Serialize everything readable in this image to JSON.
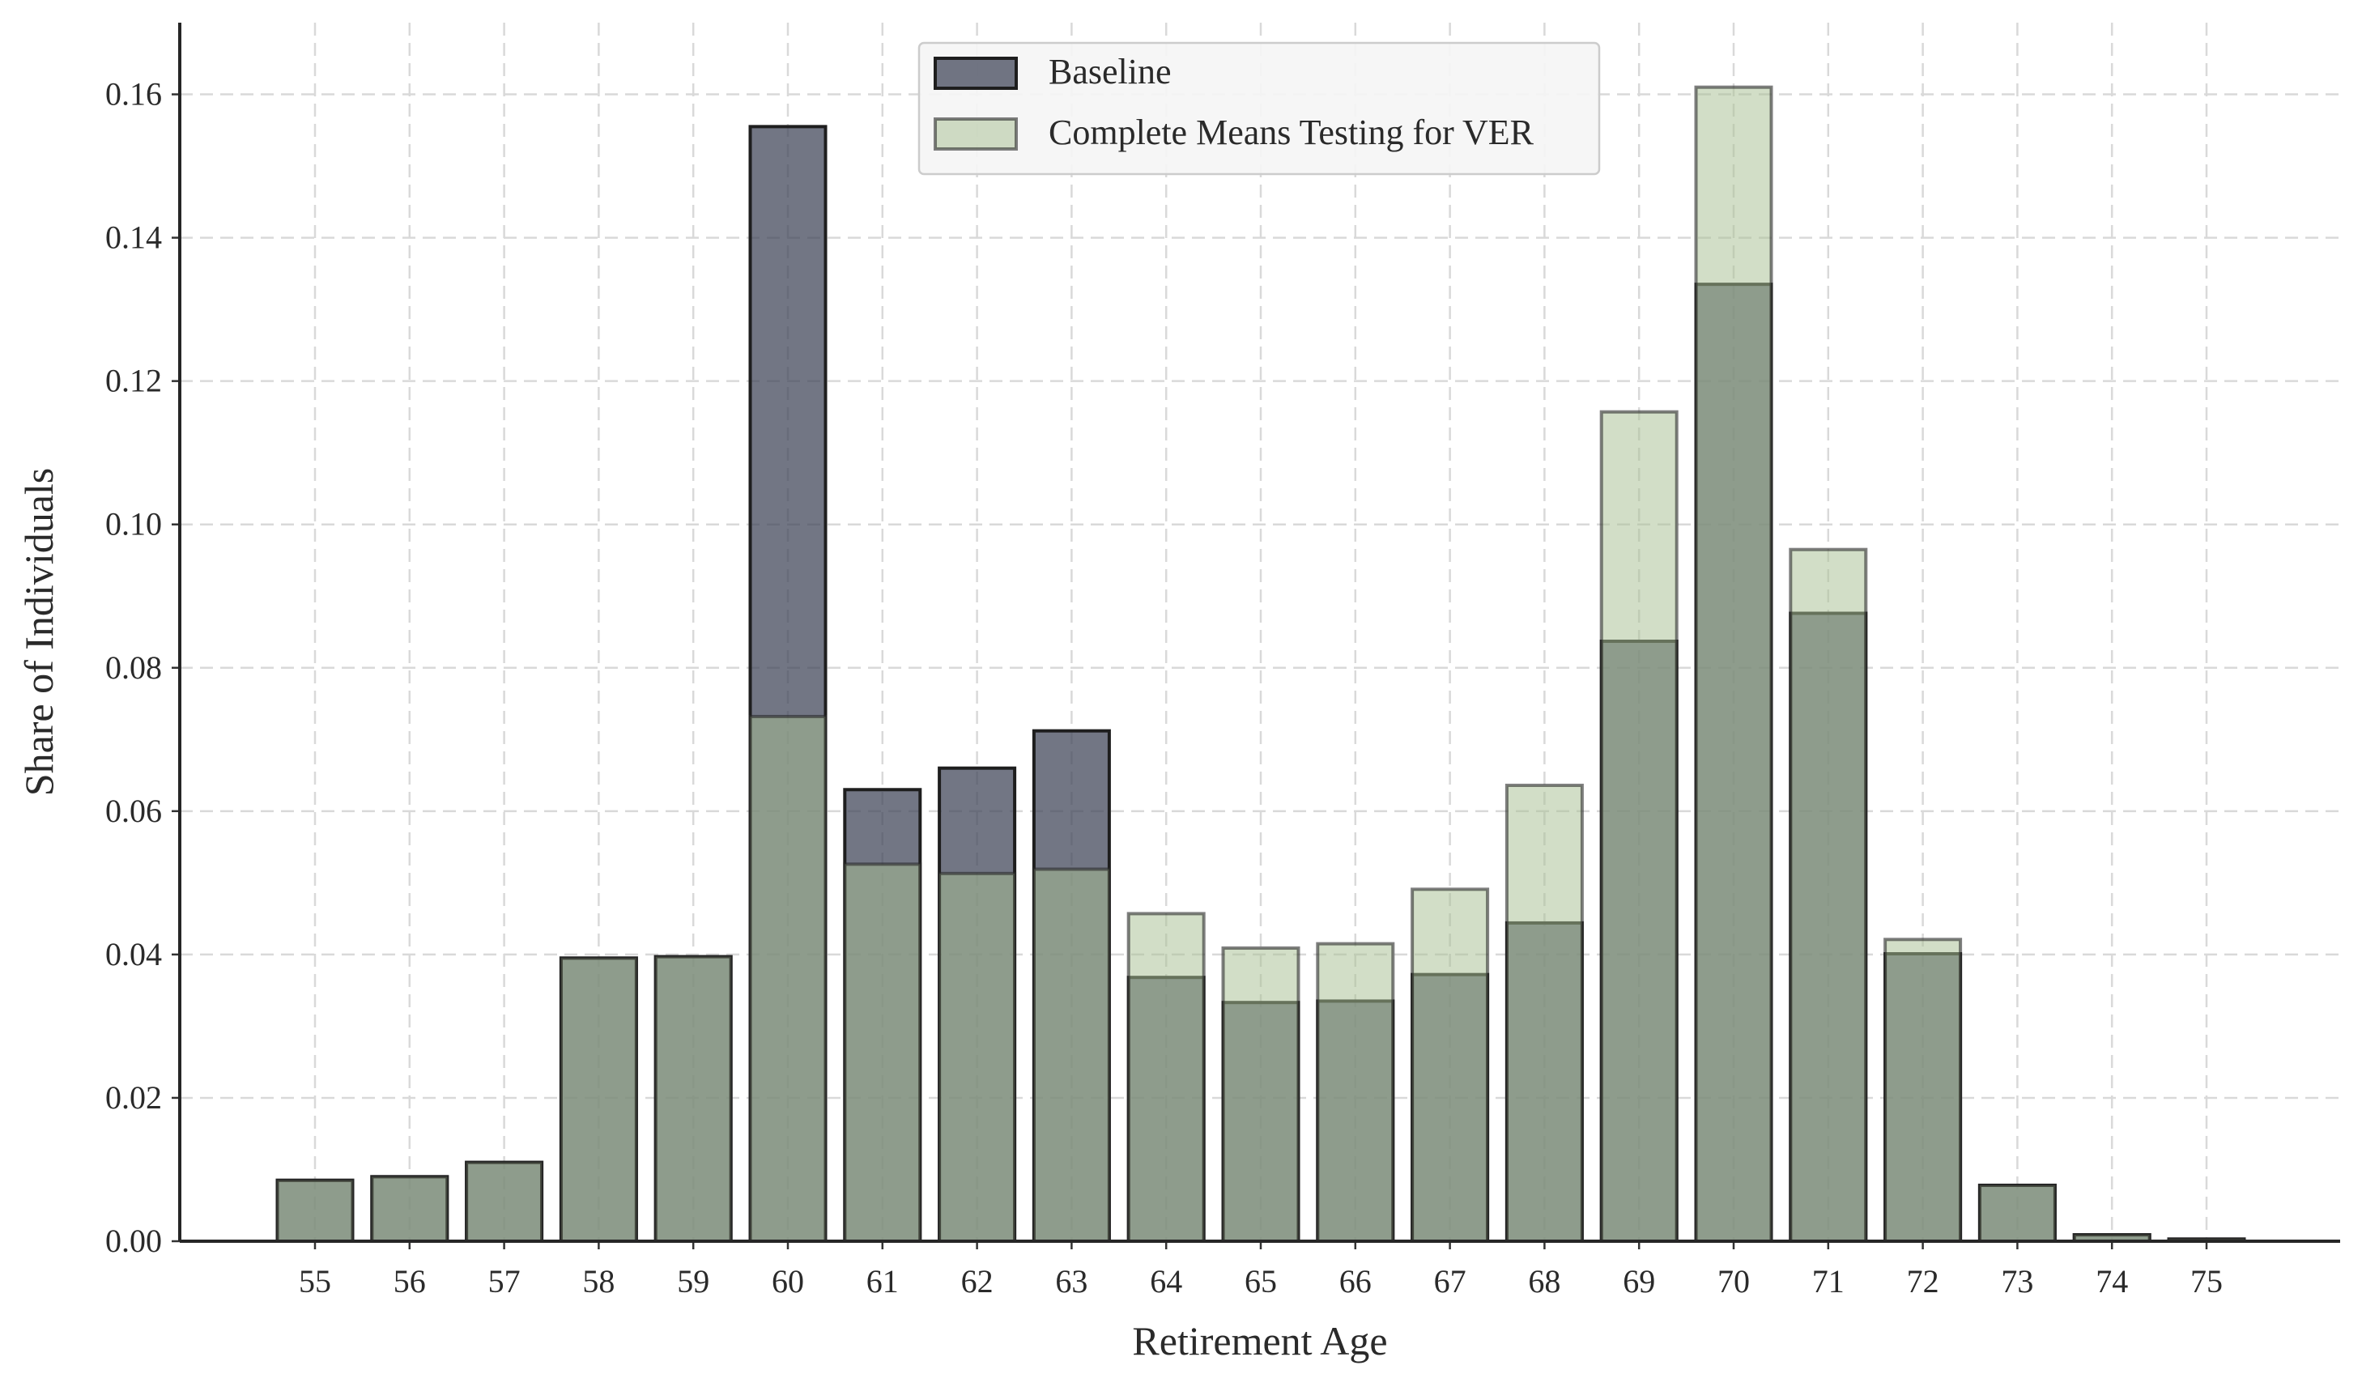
{
  "chart_data": {
    "type": "bar",
    "title": "",
    "xlabel": "Retirement Age",
    "ylabel": "Share of Individuals",
    "categories": [
      "55",
      "56",
      "57",
      "58",
      "59",
      "60",
      "61",
      "62",
      "63",
      "64",
      "65",
      "66",
      "67",
      "68",
      "69",
      "70",
      "71",
      "72",
      "73",
      "74",
      "75"
    ],
    "series": [
      {
        "name": "Baseline",
        "color": "#3b4154",
        "values": [
          0.0085,
          0.009,
          0.011,
          0.0395,
          0.0397,
          0.1555,
          0.063,
          0.066,
          0.0712,
          0.0368,
          0.0333,
          0.0335,
          0.0372,
          0.0444,
          0.0837,
          0.1335,
          0.0876,
          0.0401,
          0.0078,
          0.0009,
          0.0003
        ]
      },
      {
        "name": "Complete Means Testing for VER",
        "color": "#a9bf93",
        "values": [
          0.0085,
          0.009,
          0.011,
          0.0395,
          0.0397,
          0.0732,
          0.0526,
          0.0513,
          0.0519,
          0.0457,
          0.0409,
          0.0415,
          0.0491,
          0.0636,
          0.1157,
          0.161,
          0.0965,
          0.0421,
          0.0078,
          0.0009,
          0.0003
        ]
      }
    ],
    "ylim": [
      0,
      0.17
    ],
    "yticks": [
      "0.00",
      "0.02",
      "0.04",
      "0.06",
      "0.08",
      "0.10",
      "0.12",
      "0.14",
      "0.16"
    ],
    "grid": true,
    "legend_position": "top-center"
  }
}
